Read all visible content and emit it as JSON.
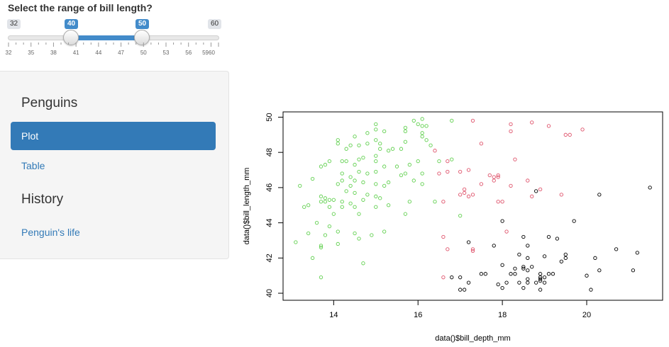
{
  "slider": {
    "title": "Select the range of bill length?",
    "min_label": "32",
    "max_label": "60",
    "from_label": "40",
    "to_label": "50",
    "min": 32,
    "max": 60,
    "from": 40,
    "to": 50,
    "tick_labels": [
      "32",
      "35",
      "38",
      "41",
      "44",
      "47",
      "50",
      "53",
      "56",
      "5960"
    ],
    "accent": "#428bca"
  },
  "sidebar": {
    "header_penguins": "Penguins",
    "item_plot": "Plot",
    "item_table": "Table",
    "header_history": "History",
    "item_life": "Penguin's life",
    "active_color": "#337ab7"
  },
  "chart_data": {
    "type": "scatter",
    "xlabel": "data()$bill_depth_mm",
    "ylabel": "data()$bill_length_mm",
    "xlim": [
      12.8,
      21.8
    ],
    "ylim": [
      39.6,
      50.3
    ],
    "xticks": [
      14,
      16,
      18,
      20
    ],
    "yticks": [
      40,
      42,
      44,
      46,
      48,
      50
    ],
    "grid": false,
    "series": [
      {
        "color": "#000000",
        "points": [
          [
            21.5,
            46.0
          ],
          [
            20.3,
            45.6
          ],
          [
            18.8,
            45.8
          ],
          [
            19.7,
            44.1
          ],
          [
            18.0,
            44.1
          ],
          [
            18.5,
            43.2
          ],
          [
            19.1,
            43.2
          ],
          [
            19.3,
            43.1
          ],
          [
            18.6,
            42.7
          ],
          [
            20.7,
            42.5
          ],
          [
            19.5,
            42.2
          ],
          [
            19.5,
            42.0
          ],
          [
            20.2,
            42.0
          ],
          [
            21.2,
            42.3
          ],
          [
            18.4,
            42.2
          ],
          [
            17.8,
            42.7
          ],
          [
            17.2,
            42.9
          ],
          [
            19.4,
            41.8
          ],
          [
            19.0,
            42.1
          ],
          [
            18.5,
            41.4
          ],
          [
            18.0,
            41.6
          ],
          [
            18.3,
            41.1
          ],
          [
            17.6,
            41.1
          ],
          [
            17.5,
            41.1
          ],
          [
            20.3,
            41.3
          ],
          [
            21.1,
            41.3
          ],
          [
            18.6,
            41.3
          ],
          [
            18.9,
            41.1
          ],
          [
            17.9,
            40.5
          ],
          [
            18.1,
            40.6
          ],
          [
            18.4,
            40.6
          ],
          [
            18.8,
            40.6
          ],
          [
            18.9,
            40.7
          ],
          [
            19.0,
            40.9
          ],
          [
            17.0,
            40.9
          ],
          [
            17.2,
            40.6
          ],
          [
            17.1,
            40.2
          ],
          [
            17.0,
            40.2
          ],
          [
            16.8,
            40.9
          ],
          [
            18.6,
            40.6
          ],
          [
            18.6,
            40.8
          ],
          [
            18.9,
            40.8
          ],
          [
            19.2,
            41.1
          ],
          [
            18.9,
            40.2
          ],
          [
            18.0,
            40.3
          ],
          [
            18.5,
            40.3
          ],
          [
            20.1,
            40.2
          ],
          [
            20.0,
            41.0
          ],
          [
            19.1,
            41.1
          ],
          [
            18.7,
            41.5
          ],
          [
            18.2,
            41.1
          ],
          [
            18.5,
            41.5
          ],
          [
            19.0,
            40.6
          ],
          [
            18.9,
            40.9
          ],
          [
            18.3,
            41.4
          ],
          [
            18.6,
            42.0
          ]
        ]
      },
      {
        "color": "#DF536B",
        "points": [
          [
            17.3,
            49.8
          ],
          [
            18.2,
            49.6
          ],
          [
            18.7,
            49.7
          ],
          [
            19.1,
            49.5
          ],
          [
            19.9,
            49.3
          ],
          [
            18.2,
            49.2
          ],
          [
            19.6,
            49.0
          ],
          [
            19.5,
            49.0
          ],
          [
            17.5,
            48.5
          ],
          [
            18.3,
            47.6
          ],
          [
            16.4,
            48.1
          ],
          [
            17.2,
            47.0
          ],
          [
            17.0,
            46.9
          ],
          [
            16.7,
            46.9
          ],
          [
            16.5,
            46.8
          ],
          [
            16.7,
            47.5
          ],
          [
            17.7,
            46.7
          ],
          [
            17.8,
            46.4
          ],
          [
            17.8,
            46.6
          ],
          [
            17.9,
            46.6
          ],
          [
            17.5,
            46.2
          ],
          [
            18.2,
            46.1
          ],
          [
            17.9,
            46.7
          ],
          [
            18.6,
            46.4
          ],
          [
            18.9,
            45.9
          ],
          [
            17.1,
            45.7
          ],
          [
            17.3,
            45.6
          ],
          [
            17.0,
            45.6
          ],
          [
            17.1,
            45.9
          ],
          [
            17.2,
            45.5
          ],
          [
            17.9,
            45.2
          ],
          [
            18.7,
            45.5
          ],
          [
            19.4,
            45.6
          ],
          [
            16.6,
            45.2
          ],
          [
            18.0,
            45.2
          ],
          [
            16.6,
            43.2
          ],
          [
            16.7,
            42.5
          ],
          [
            18.1,
            43.5
          ],
          [
            17.3,
            42.5
          ],
          [
            17.3,
            42.4
          ],
          [
            16.6,
            40.9
          ]
        ]
      },
      {
        "color": "#61D04F",
        "points": [
          [
            16.1,
            49.9
          ],
          [
            15.9,
            49.8
          ],
          [
            16.0,
            49.6
          ],
          [
            16.1,
            49.5
          ],
          [
            16.2,
            49.5
          ],
          [
            15.0,
            49.6
          ],
          [
            16.8,
            49.8
          ],
          [
            16.1,
            49.1
          ],
          [
            15.7,
            49.2
          ],
          [
            15.7,
            49.4
          ],
          [
            15.0,
            49.3
          ],
          [
            15.2,
            49.2
          ],
          [
            14.8,
            49.1
          ],
          [
            16.1,
            48.9
          ],
          [
            16.2,
            48.7
          ],
          [
            16.3,
            48.4
          ],
          [
            14.5,
            48.9
          ],
          [
            14.1,
            48.7
          ],
          [
            14.1,
            48.5
          ],
          [
            15.0,
            48.7
          ],
          [
            14.8,
            48.5
          ],
          [
            15.1,
            48.5
          ],
          [
            14.3,
            48.2
          ],
          [
            14.4,
            48.4
          ],
          [
            14.6,
            48.4
          ],
          [
            15.7,
            48.6
          ],
          [
            15.1,
            48.2
          ],
          [
            15.3,
            48.1
          ],
          [
            15.4,
            48.2
          ],
          [
            15.6,
            48.2
          ],
          [
            14.3,
            47.5
          ],
          [
            14.7,
            47.7
          ],
          [
            15.0,
            47.8
          ],
          [
            14.5,
            47.3
          ],
          [
            13.9,
            47.5
          ],
          [
            13.7,
            47.2
          ],
          [
            13.8,
            47.3
          ],
          [
            14.2,
            47.5
          ],
          [
            14.6,
            47.6
          ],
          [
            15.0,
            47.5
          ],
          [
            15.2,
            47.2
          ],
          [
            15.5,
            47.2
          ],
          [
            15.8,
            47.3
          ],
          [
            16.0,
            47.5
          ],
          [
            16.5,
            47.5
          ],
          [
            16.8,
            47.6
          ],
          [
            14.2,
            46.8
          ],
          [
            14.4,
            46.6
          ],
          [
            14.6,
            46.9
          ],
          [
            14.8,
            46.8
          ],
          [
            15.0,
            46.9
          ],
          [
            15.6,
            46.7
          ],
          [
            15.7,
            46.8
          ],
          [
            16.1,
            46.8
          ],
          [
            13.5,
            46.5
          ],
          [
            14.2,
            46.4
          ],
          [
            14.5,
            46.4
          ],
          [
            14.7,
            46.3
          ],
          [
            15.3,
            46.3
          ],
          [
            15.9,
            46.4
          ],
          [
            16.1,
            46.2
          ],
          [
            14.1,
            46.2
          ],
          [
            14.4,
            46.1
          ],
          [
            15.0,
            46.2
          ],
          [
            15.2,
            46.1
          ],
          [
            14.3,
            45.8
          ],
          [
            14.5,
            45.7
          ],
          [
            14.8,
            45.6
          ],
          [
            15.0,
            45.5
          ],
          [
            13.2,
            46.1
          ],
          [
            13.7,
            45.5
          ],
          [
            13.8,
            45.4
          ],
          [
            13.9,
            45.3
          ],
          [
            14.0,
            45.3
          ],
          [
            14.2,
            45.2
          ],
          [
            14.4,
            45.1
          ],
          [
            14.7,
            45.3
          ],
          [
            15.1,
            45.4
          ],
          [
            15.8,
            45.2
          ],
          [
            16.4,
            45.2
          ],
          [
            13.7,
            45.2
          ],
          [
            13.8,
            45.2
          ],
          [
            13.4,
            45.0
          ],
          [
            13.9,
            44.9
          ],
          [
            14.2,
            44.9
          ],
          [
            14.5,
            44.9
          ],
          [
            15.0,
            44.9
          ],
          [
            15.3,
            45.0
          ],
          [
            13.3,
            44.9
          ],
          [
            14.0,
            44.5
          ],
          [
            14.6,
            44.5
          ],
          [
            15.7,
            44.5
          ],
          [
            17.0,
            44.4
          ],
          [
            13.6,
            44.0
          ],
          [
            13.9,
            43.8
          ],
          [
            14.1,
            43.5
          ],
          [
            14.5,
            43.4
          ],
          [
            14.9,
            43.3
          ],
          [
            15.2,
            43.5
          ],
          [
            13.4,
            43.4
          ],
          [
            13.8,
            43.3
          ],
          [
            14.6,
            43.1
          ],
          [
            13.1,
            42.9
          ],
          [
            13.7,
            42.7
          ],
          [
            14.1,
            42.8
          ],
          [
            13.7,
            42.6
          ],
          [
            13.5,
            42.0
          ],
          [
            14.7,
            41.7
          ],
          [
            13.7,
            40.9
          ]
        ]
      }
    ]
  }
}
